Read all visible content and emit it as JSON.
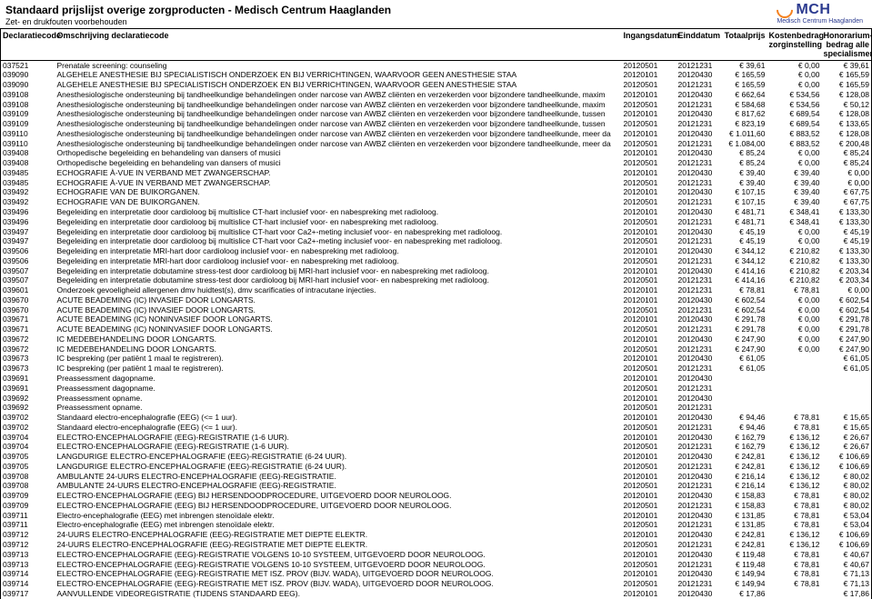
{
  "header": {
    "title": "Standaard prijslijst overige zorgproducten - Medisch Centrum Haaglanden",
    "subtitle": "Zet- en drukfouten voorbehouden",
    "logo_text": "MCH",
    "logo_sub": "Medisch Centrum Haaglanden"
  },
  "columns": {
    "code": "Declaratiecode",
    "desc": "Omschrijving declaratiecode",
    "start": "Ingangsdatum",
    "end": "Einddatum",
    "total": "Totaalprijs",
    "zorg": "Kostenbedrag zorginstelling",
    "hon": "Honorarium-bedrag alle specialismen"
  },
  "rows": [
    {
      "code": "037521",
      "desc": "Prenatale screening: counseling",
      "d1": "20120501",
      "d2": "20121231",
      "t": "€ 39,61",
      "z": "€ 0,00",
      "h": "€ 39,61"
    },
    {
      "code": "039090",
      "desc": "ALGEHELE ANESTHESIE BIJ SPECIALISTISCH ONDERZOEK EN BIJ VERRICHTINGEN, WAARVOOR GEEN ANESTHESIE STAA",
      "d1": "20120101",
      "d2": "20120430",
      "t": "€ 165,59",
      "z": "€ 0,00",
      "h": "€ 165,59"
    },
    {
      "code": "039090",
      "desc": "ALGEHELE ANESTHESIE BIJ SPECIALISTISCH ONDERZOEK EN BIJ VERRICHTINGEN, WAARVOOR GEEN ANESTHESIE STAA",
      "d1": "20120501",
      "d2": "20121231",
      "t": "€ 165,59",
      "z": "€ 0,00",
      "h": "€ 165,59"
    },
    {
      "code": "039108",
      "desc": "Anesthesiologische ondersteuning bij tandheelkundige behandelingen onder narcose van AWBZ cliënten en verzekerden voor bijzondere tandheelkunde, maxim",
      "d1": "20120101",
      "d2": "20120430",
      "t": "€ 662,64",
      "z": "€ 534,56",
      "h": "€ 128,08"
    },
    {
      "code": "039108",
      "desc": "Anesthesiologische ondersteuning bij tandheelkundige behandelingen onder narcose van AWBZ cliënten en verzekerden voor bijzondere tandheelkunde, maxim",
      "d1": "20120501",
      "d2": "20121231",
      "t": "€ 584,68",
      "z": "€ 534,56",
      "h": "€ 50,12"
    },
    {
      "code": "039109",
      "desc": "Anesthesiologische ondersteuning bij tandheelkundige behandelingen onder narcose van AWBZ cliënten en verzekerden voor bijzondere tandheelkunde, tussen",
      "d1": "20120101",
      "d2": "20120430",
      "t": "€ 817,62",
      "z": "€ 689,54",
      "h": "€ 128,08"
    },
    {
      "code": "039109",
      "desc": "Anesthesiologische ondersteuning bij tandheelkundige behandelingen onder narcose van AWBZ cliënten en verzekerden voor bijzondere tandheelkunde, tussen",
      "d1": "20120501",
      "d2": "20121231",
      "t": "€ 823,19",
      "z": "€ 689,54",
      "h": "€ 133,65"
    },
    {
      "code": "039110",
      "desc": "Anesthesiologische ondersteuning bij tandheelkundige behandelingen onder narcose van AWBZ cliënten en verzekerden voor bijzondere tandheelkunde, meer da",
      "d1": "20120101",
      "d2": "20120430",
      "t": "€ 1.011,60",
      "z": "€ 883,52",
      "h": "€ 128,08"
    },
    {
      "code": "039110",
      "desc": "Anesthesiologische ondersteuning bij tandheelkundige behandelingen onder narcose van AWBZ cliënten en verzekerden voor bijzondere tandheelkunde, meer da",
      "d1": "20120501",
      "d2": "20121231",
      "t": "€ 1.084,00",
      "z": "€ 883,52",
      "h": "€ 200,48"
    },
    {
      "code": "039408",
      "desc": "Orthopedische begeleiding en behandeling van dansers of musici",
      "d1": "20120101",
      "d2": "20120430",
      "t": "€ 85,24",
      "z": "€ 0,00",
      "h": "€ 85,24"
    },
    {
      "code": "039408",
      "desc": "Orthopedische begeleiding en behandeling van dansers of musici",
      "d1": "20120501",
      "d2": "20121231",
      "t": "€ 85,24",
      "z": "€ 0,00",
      "h": "€ 85,24"
    },
    {
      "code": "039485",
      "desc": "ECHOGRAFIE À-VUE IN VERBAND MET ZWANGERSCHAP.",
      "d1": "20120101",
      "d2": "20120430",
      "t": "€ 39,40",
      "z": "€ 39,40",
      "h": "€ 0,00"
    },
    {
      "code": "039485",
      "desc": "ECHOGRAFIE À-VUE IN VERBAND MET ZWANGERSCHAP.",
      "d1": "20120501",
      "d2": "20121231",
      "t": "€ 39,40",
      "z": "€ 39,40",
      "h": "€ 0,00"
    },
    {
      "code": "039492",
      "desc": "ECHOGRAFIE VAN DE BUIKORGANEN.",
      "d1": "20120101",
      "d2": "20120430",
      "t": "€ 107,15",
      "z": "€ 39,40",
      "h": "€ 67,75"
    },
    {
      "code": "039492",
      "desc": "ECHOGRAFIE VAN DE BUIKORGANEN.",
      "d1": "20120501",
      "d2": "20121231",
      "t": "€ 107,15",
      "z": "€ 39,40",
      "h": "€ 67,75"
    },
    {
      "code": "039496",
      "desc": "Begeleiding en interpretatie door cardioloog bij multislice CT-hart inclusief voor- en nabespreking met radioloog.",
      "d1": "20120101",
      "d2": "20120430",
      "t": "€ 481,71",
      "z": "€ 348,41",
      "h": "€ 133,30"
    },
    {
      "code": "039496",
      "desc": "Begeleiding en interpretatie door cardioloog bij multislice CT-hart inclusief voor- en nabespreking met radioloog.",
      "d1": "20120501",
      "d2": "20121231",
      "t": "€ 481,71",
      "z": "€ 348,41",
      "h": "€ 133,30"
    },
    {
      "code": "039497",
      "desc": "Begeleiding en interpretatie door cardioloog bij multislice CT-hart voor Ca2+-meting inclusief voor- en nabespreking met radioloog.",
      "d1": "20120101",
      "d2": "20120430",
      "t": "€ 45,19",
      "z": "€ 0,00",
      "h": "€ 45,19"
    },
    {
      "code": "039497",
      "desc": "Begeleiding en interpretatie door cardioloog bij multislice CT-hart voor Ca2+-meting inclusief voor- en nabespreking met radioloog.",
      "d1": "20120501",
      "d2": "20121231",
      "t": "€ 45,19",
      "z": "€ 0,00",
      "h": "€ 45,19"
    },
    {
      "code": "039506",
      "desc": "Begeleiding en interpretatie MRI-hart door cardioloog inclusief voor- en nabespreking met radioloog.",
      "d1": "20120101",
      "d2": "20120430",
      "t": "€ 344,12",
      "z": "€ 210,82",
      "h": "€ 133,30"
    },
    {
      "code": "039506",
      "desc": "Begeleiding en interpretatie MRI-hart door cardioloog inclusief voor- en nabespreking met radioloog.",
      "d1": "20120501",
      "d2": "20121231",
      "t": "€ 344,12",
      "z": "€ 210,82",
      "h": "€ 133,30"
    },
    {
      "code": "039507",
      "desc": "Begeleiding en interpretatie dobutamine stress-test door cardioloog bij MRI-hart inclusief voor- en nabespreking met radioloog.",
      "d1": "20120101",
      "d2": "20120430",
      "t": "€ 414,16",
      "z": "€ 210,82",
      "h": "€ 203,34"
    },
    {
      "code": "039507",
      "desc": "Begeleiding en interpretatie dobutamine stress-test door cardioloog bij MRI-hart inclusief voor- en nabespreking met radioloog.",
      "d1": "20120501",
      "d2": "20121231",
      "t": "€ 414,16",
      "z": "€ 210,82",
      "h": "€ 203,34"
    },
    {
      "code": "039601",
      "desc": "Onderzoek gevoeligheid allergenen dmv huidtest(s), dmv scarificaties of intracutane injecties.",
      "d1": "20120101",
      "d2": "20121231",
      "t": "€ 78,81",
      "z": "€ 78,81",
      "h": "€ 0,00"
    },
    {
      "code": "039670",
      "desc": "ACUTE BEADEMING (IC) INVASIEF DOOR LONGARTS.",
      "d1": "20120101",
      "d2": "20120430",
      "t": "€ 602,54",
      "z": "€ 0,00",
      "h": "€ 602,54"
    },
    {
      "code": "039670",
      "desc": "ACUTE BEADEMING (IC) INVASIEF DOOR LONGARTS.",
      "d1": "20120501",
      "d2": "20121231",
      "t": "€ 602,54",
      "z": "€ 0,00",
      "h": "€ 602,54"
    },
    {
      "code": "039671",
      "desc": "ACUTE BEADEMING (IC) NONINVASIEF DOOR LONGARTS.",
      "d1": "20120101",
      "d2": "20120430",
      "t": "€ 291,78",
      "z": "€ 0,00",
      "h": "€ 291,78"
    },
    {
      "code": "039671",
      "desc": "ACUTE BEADEMING (IC) NONINVASIEF DOOR LONGARTS.",
      "d1": "20120501",
      "d2": "20121231",
      "t": "€ 291,78",
      "z": "€ 0,00",
      "h": "€ 291,78"
    },
    {
      "code": "039672",
      "desc": "IC MEDEBEHANDELING DOOR LONGARTS.",
      "d1": "20120101",
      "d2": "20120430",
      "t": "€ 247,90",
      "z": "€ 0,00",
      "h": "€ 247,90"
    },
    {
      "code": "039672",
      "desc": "IC MEDEBEHANDELING DOOR LONGARTS.",
      "d1": "20120501",
      "d2": "20121231",
      "t": "€ 247,90",
      "z": "€ 0,00",
      "h": "€ 247,90"
    },
    {
      "code": "039673",
      "desc": "IC bespreking (per patiënt 1 maal te registreren).",
      "d1": "20120101",
      "d2": "20120430",
      "t": "€ 61,05",
      "z": "",
      "h": "€ 61,05"
    },
    {
      "code": "039673",
      "desc": "IC bespreking (per patiënt 1 maal te registreren).",
      "d1": "20120501",
      "d2": "20121231",
      "t": "€ 61,05",
      "z": "",
      "h": "€ 61,05"
    },
    {
      "code": "039691",
      "desc": "Preassessment dagopname.",
      "d1": "20120101",
      "d2": "20120430",
      "t": "",
      "z": "",
      "h": ""
    },
    {
      "code": "039691",
      "desc": "Preassessment dagopname.",
      "d1": "20120501",
      "d2": "20121231",
      "t": "",
      "z": "",
      "h": ""
    },
    {
      "code": "039692",
      "desc": "Preassessment opname.",
      "d1": "20120101",
      "d2": "20120430",
      "t": "",
      "z": "",
      "h": ""
    },
    {
      "code": "039692",
      "desc": "Preassessment opname.",
      "d1": "20120501",
      "d2": "20121231",
      "t": "",
      "z": "",
      "h": ""
    },
    {
      "code": "039702",
      "desc": "Standaard electro-encephalografie (EEG) (<= 1 uur).",
      "d1": "20120101",
      "d2": "20120430",
      "t": "€ 94,46",
      "z": "€ 78,81",
      "h": "€ 15,65"
    },
    {
      "code": "039702",
      "desc": "Standaard electro-encephalografie (EEG) (<= 1 uur).",
      "d1": "20120501",
      "d2": "20121231",
      "t": "€ 94,46",
      "z": "€ 78,81",
      "h": "€ 15,65"
    },
    {
      "code": "039704",
      "desc": "ELECTRO-ENCEPHALOGRAFIE (EEG)-REGISTRATIE (1-6 UUR).",
      "d1": "20120101",
      "d2": "20120430",
      "t": "€ 162,79",
      "z": "€ 136,12",
      "h": "€ 26,67"
    },
    {
      "code": "039704",
      "desc": "ELECTRO-ENCEPHALOGRAFIE (EEG)-REGISTRATIE (1-6 UUR).",
      "d1": "20120501",
      "d2": "20121231",
      "t": "€ 162,79",
      "z": "€ 136,12",
      "h": "€ 26,67"
    },
    {
      "code": "039705",
      "desc": "LANGDURIGE ELECTRO-ENCEPHALOGRAFIE (EEG)-REGISTRATIE (6-24 UUR).",
      "d1": "20120101",
      "d2": "20120430",
      "t": "€ 242,81",
      "z": "€ 136,12",
      "h": "€ 106,69"
    },
    {
      "code": "039705",
      "desc": "LANGDURIGE ELECTRO-ENCEPHALOGRAFIE (EEG)-REGISTRATIE (6-24 UUR).",
      "d1": "20120501",
      "d2": "20121231",
      "t": "€ 242,81",
      "z": "€ 136,12",
      "h": "€ 106,69"
    },
    {
      "code": "039708",
      "desc": "AMBULANTE 24-UURS ELECTRO-ENCEPHALOGRAFIE (EEG)-REGISTRATIE.",
      "d1": "20120101",
      "d2": "20120430",
      "t": "€ 216,14",
      "z": "€ 136,12",
      "h": "€ 80,02"
    },
    {
      "code": "039708",
      "desc": "AMBULANTE 24-UURS ELECTRO-ENCEPHALOGRAFIE (EEG)-REGISTRATIE.",
      "d1": "20120501",
      "d2": "20121231",
      "t": "€ 216,14",
      "z": "€ 136,12",
      "h": "€ 80,02"
    },
    {
      "code": "039709",
      "desc": "ELECTRO-ENCEPHALOGRAFIE (EEG) BIJ HERSENDOODPROCEDURE, UITGEVOERD DOOR NEUROLOOG.",
      "d1": "20120101",
      "d2": "20120430",
      "t": "€ 158,83",
      "z": "€ 78,81",
      "h": "€ 80,02"
    },
    {
      "code": "039709",
      "desc": "ELECTRO-ENCEPHALOGRAFIE (EEG) BIJ HERSENDOODPROCEDURE, UITGEVOERD DOOR NEUROLOOG.",
      "d1": "20120501",
      "d2": "20121231",
      "t": "€ 158,83",
      "z": "€ 78,81",
      "h": "€ 80,02"
    },
    {
      "code": "039711",
      "desc": "Electro-encephalografie (EEG) met inbrengen stenoïdale elektr.",
      "d1": "20120101",
      "d2": "20120430",
      "t": "€ 131,85",
      "z": "€ 78,81",
      "h": "€ 53,04"
    },
    {
      "code": "039711",
      "desc": "Electro-encephalografie (EEG) met inbrengen stenoïdale elektr.",
      "d1": "20120501",
      "d2": "20121231",
      "t": "€ 131,85",
      "z": "€ 78,81",
      "h": "€ 53,04"
    },
    {
      "code": "039712",
      "desc": "24-UURS ELECTRO-ENCEPHALOGRAFIE (EEG)-REGISTRATIE MET DIEPTE ELEKTR.",
      "d1": "20120101",
      "d2": "20120430",
      "t": "€ 242,81",
      "z": "€ 136,12",
      "h": "€ 106,69"
    },
    {
      "code": "039712",
      "desc": "24-UURS ELECTRO-ENCEPHALOGRAFIE (EEG)-REGISTRATIE MET DIEPTE ELEKTR.",
      "d1": "20120501",
      "d2": "20121231",
      "t": "€ 242,81",
      "z": "€ 136,12",
      "h": "€ 106,69"
    },
    {
      "code": "039713",
      "desc": "ELECTRO-ENCEPHALOGRAFIE (EEG)-REGISTRATIE VOLGENS 10-10 SYSTEEM, UITGEVOERD DOOR NEUROLOOG.",
      "d1": "20120101",
      "d2": "20120430",
      "t": "€ 119,48",
      "z": "€ 78,81",
      "h": "€ 40,67"
    },
    {
      "code": "039713",
      "desc": "ELECTRO-ENCEPHALOGRAFIE (EEG)-REGISTRATIE VOLGENS 10-10 SYSTEEM, UITGEVOERD DOOR NEUROLOOG.",
      "d1": "20120501",
      "d2": "20121231",
      "t": "€ 119,48",
      "z": "€ 78,81",
      "h": "€ 40,67"
    },
    {
      "code": "039714",
      "desc": "ELECTRO-ENCEPHALOGRAFIE (EEG)-REGISTRATIE MET ISZ. PROV (BIJV. WADA), UITGEVOERD DOOR NEUROLOOG.",
      "d1": "20120101",
      "d2": "20120430",
      "t": "€ 149,94",
      "z": "€ 78,81",
      "h": "€ 71,13"
    },
    {
      "code": "039714",
      "desc": "ELECTRO-ENCEPHALOGRAFIE (EEG)-REGISTRATIE MET ISZ. PROV (BIJV. WADA), UITGEVOERD DOOR NEUROLOOG.",
      "d1": "20120501",
      "d2": "20121231",
      "t": "€ 149,94",
      "z": "€ 78,81",
      "h": "€ 71,13"
    },
    {
      "code": "039717",
      "desc": "AANVULLENDE VIDEOREGISTRATIE (TIJDENS STANDAARD EEG).",
      "d1": "20120101",
      "d2": "20120430",
      "t": "€ 17,86",
      "z": "",
      "h": "€ 17,86"
    }
  ]
}
